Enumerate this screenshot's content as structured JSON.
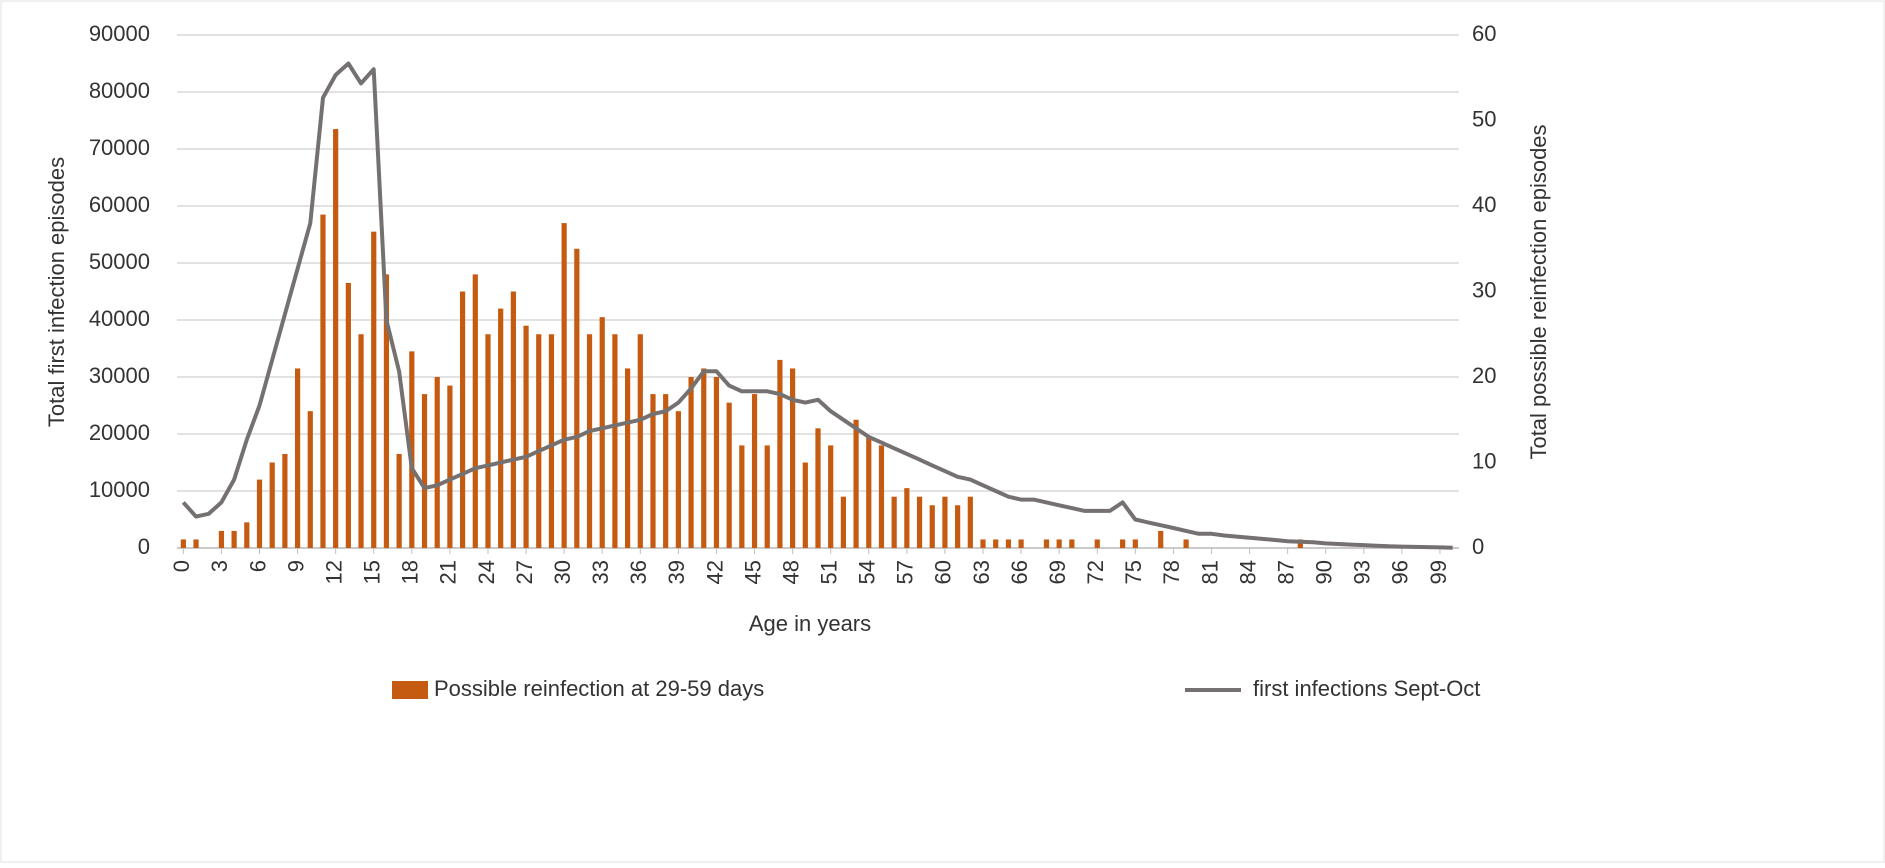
{
  "chart_data": {
    "type": "combo",
    "x_label": "Age in years",
    "y_label": "Total first infection episodes",
    "y2_label": "Total possible reinfection episodes",
    "x": [
      0,
      1,
      2,
      3,
      4,
      5,
      6,
      7,
      8,
      9,
      10,
      11,
      12,
      13,
      14,
      15,
      16,
      17,
      18,
      19,
      20,
      21,
      22,
      23,
      24,
      25,
      26,
      27,
      28,
      29,
      30,
      31,
      32,
      33,
      34,
      35,
      36,
      37,
      38,
      39,
      40,
      41,
      42,
      43,
      44,
      45,
      46,
      47,
      48,
      49,
      50,
      51,
      52,
      53,
      54,
      55,
      56,
      57,
      58,
      59,
      60,
      61,
      62,
      63,
      64,
      65,
      66,
      67,
      68,
      69,
      70,
      71,
      72,
      73,
      74,
      75,
      76,
      77,
      78,
      79,
      80,
      81,
      82,
      83,
      84,
      85,
      86,
      87,
      88,
      89,
      90,
      91,
      92,
      93,
      94,
      95,
      96,
      97,
      98,
      99,
      100
    ],
    "xlim": [
      -0.5,
      100.5
    ],
    "xticks": [
      0,
      3,
      6,
      9,
      12,
      15,
      18,
      21,
      24,
      27,
      30,
      33,
      36,
      39,
      42,
      45,
      48,
      51,
      54,
      57,
      60,
      63,
      66,
      69,
      72,
      75,
      78,
      81,
      84,
      87,
      90,
      93,
      96,
      99
    ],
    "ylim": [
      0,
      90000
    ],
    "yticks": [
      0,
      10000,
      20000,
      30000,
      40000,
      50000,
      60000,
      70000,
      80000,
      90000
    ],
    "y2lim": [
      0,
      60
    ],
    "y2ticks": [
      0,
      10,
      20,
      30,
      40,
      50,
      60
    ],
    "grid": true,
    "legend": "bottom",
    "series": [
      {
        "name": "Possible reinfection at 29-59 days",
        "type": "bar",
        "axis": "y2",
        "color": "#c55a11",
        "values": [
          1,
          1,
          0,
          2,
          2,
          3,
          8,
          10,
          11,
          21,
          16,
          39,
          49,
          31,
          25,
          37,
          32,
          11,
          23,
          18,
          20,
          19,
          30,
          32,
          25,
          28,
          30,
          26,
          25,
          25,
          38,
          35,
          25,
          27,
          25,
          21,
          25,
          18,
          18,
          16,
          20,
          21,
          20,
          17,
          12,
          18,
          12,
          22,
          21,
          10,
          14,
          12,
          6,
          15,
          13,
          12,
          6,
          7,
          6,
          5,
          6,
          5,
          6,
          1,
          1,
          1,
          1,
          0,
          1,
          1,
          1,
          0,
          1,
          0,
          1,
          1,
          0,
          2,
          0,
          1,
          0,
          0,
          0,
          0,
          0,
          0,
          0,
          0,
          1,
          0,
          0,
          0,
          0,
          0,
          0,
          0,
          0,
          0,
          0,
          0,
          0
        ]
      },
      {
        "name": "first infections Sept-Oct",
        "type": "line",
        "axis": "y",
        "color": "#767171",
        "values": [
          8000,
          5500,
          6000,
          8000,
          12000,
          19000,
          25000,
          33000,
          41000,
          49000,
          57000,
          79000,
          83000,
          85000,
          81500,
          84000,
          40000,
          31000,
          14000,
          10500,
          11000,
          12000,
          13000,
          14000,
          14500,
          15000,
          15500,
          16000,
          17000,
          18000,
          19000,
          19500,
          20500,
          21000,
          21500,
          22000,
          22500,
          23500,
          24000,
          25500,
          28000,
          31000,
          31000,
          28500,
          27500,
          27500,
          27500,
          27000,
          26000,
          25500,
          26000,
          24000,
          22500,
          21000,
          19500,
          18500,
          17500,
          16500,
          15500,
          14500,
          13500,
          12500,
          12000,
          11000,
          10000,
          9000,
          8500,
          8500,
          8000,
          7500,
          7000,
          6500,
          6500,
          6500,
          8000,
          5000,
          4500,
          4000,
          3500,
          3000,
          2500,
          2500,
          2200,
          2000,
          1800,
          1600,
          1400,
          1200,
          1100,
          1000,
          800,
          700,
          600,
          500,
          400,
          300,
          250,
          200,
          150,
          100,
          50
        ]
      }
    ]
  }
}
